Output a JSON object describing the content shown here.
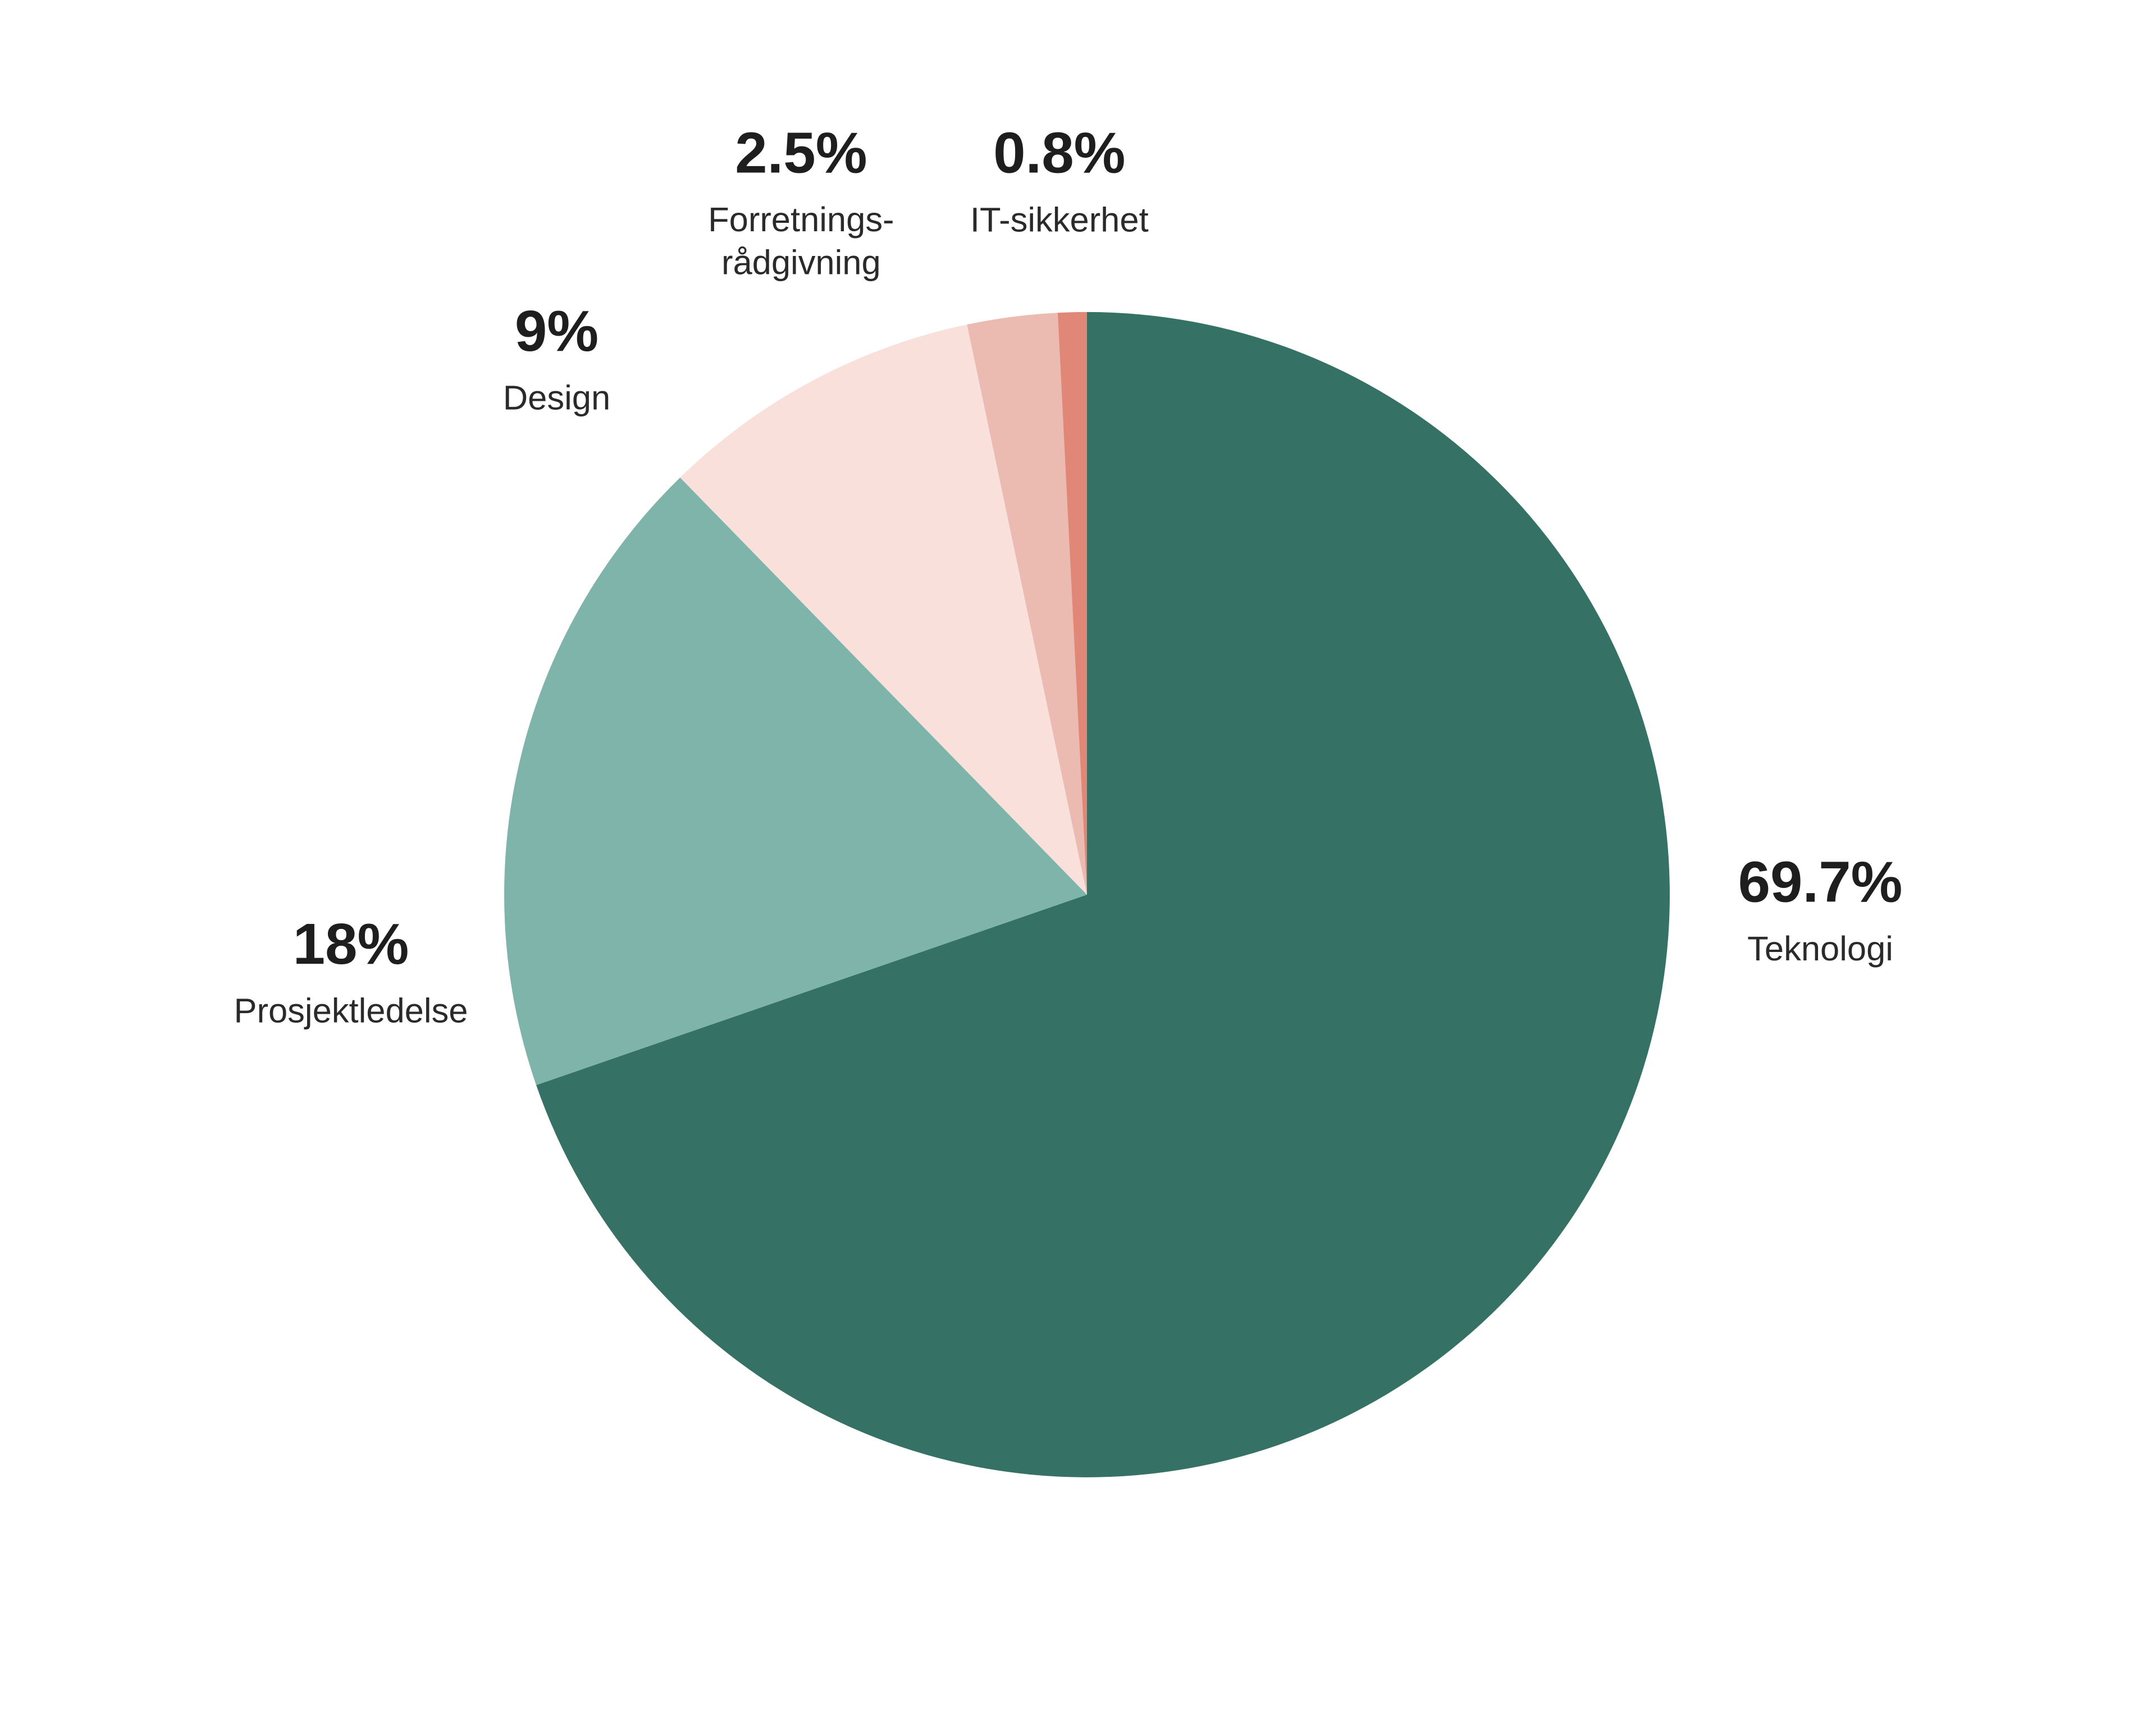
{
  "chart_data": {
    "type": "pie",
    "categories": [
      "Teknologi",
      "Prosjektledelse",
      "Design",
      "Forretnings-\nrådgivning",
      "IT-sikkerhet"
    ],
    "values": [
      69.7,
      18,
      9,
      2.5,
      0.8
    ],
    "value_labels": [
      "69.7%",
      "18%",
      "9%",
      "2.5%",
      "0.8%"
    ],
    "colors": [
      "#357265",
      "#7fb4aa",
      "#fae0db",
      "#ebbab1",
      "#e08777"
    ]
  }
}
